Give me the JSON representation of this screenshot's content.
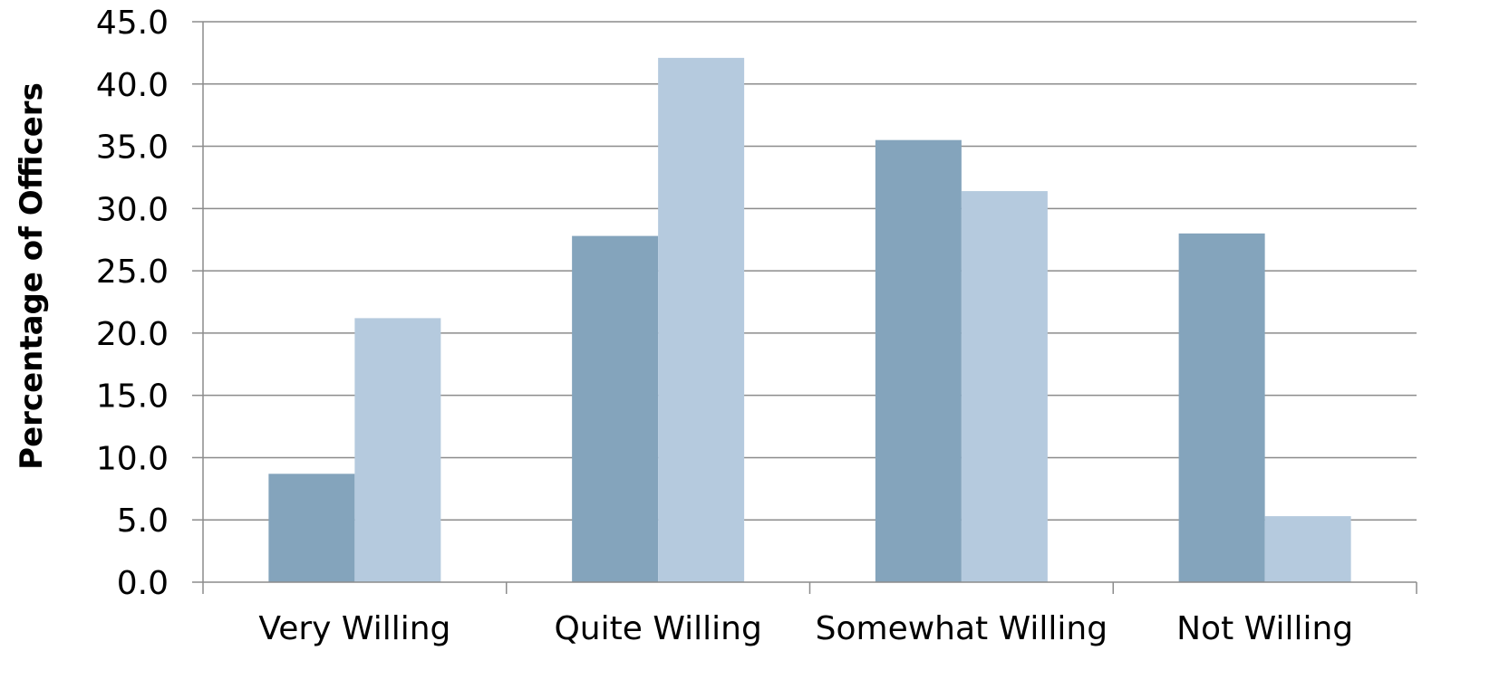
{
  "chart_data": {
    "type": "bar",
    "categories": [
      "Very Willing",
      "Quite Willing",
      "Somewhat Willing",
      "Not Willing"
    ],
    "series": [
      {
        "values": [
          8.7,
          27.8,
          35.5,
          28.0
        ],
        "color": "#84a4bc"
      },
      {
        "values": [
          21.2,
          42.1,
          31.4,
          5.3
        ],
        "color": "#b5cade"
      }
    ],
    "yticks": [
      "0.0",
      "5.0",
      "10.0",
      "15.0",
      "20.0",
      "25.0",
      "30.0",
      "35.0",
      "40.0",
      "45.0"
    ],
    "ylim": [
      0,
      45
    ],
    "ystep": 5,
    "ylabel": "Percentage of Officers",
    "xlabel": "",
    "title": "",
    "grid": true,
    "legend": "none"
  }
}
